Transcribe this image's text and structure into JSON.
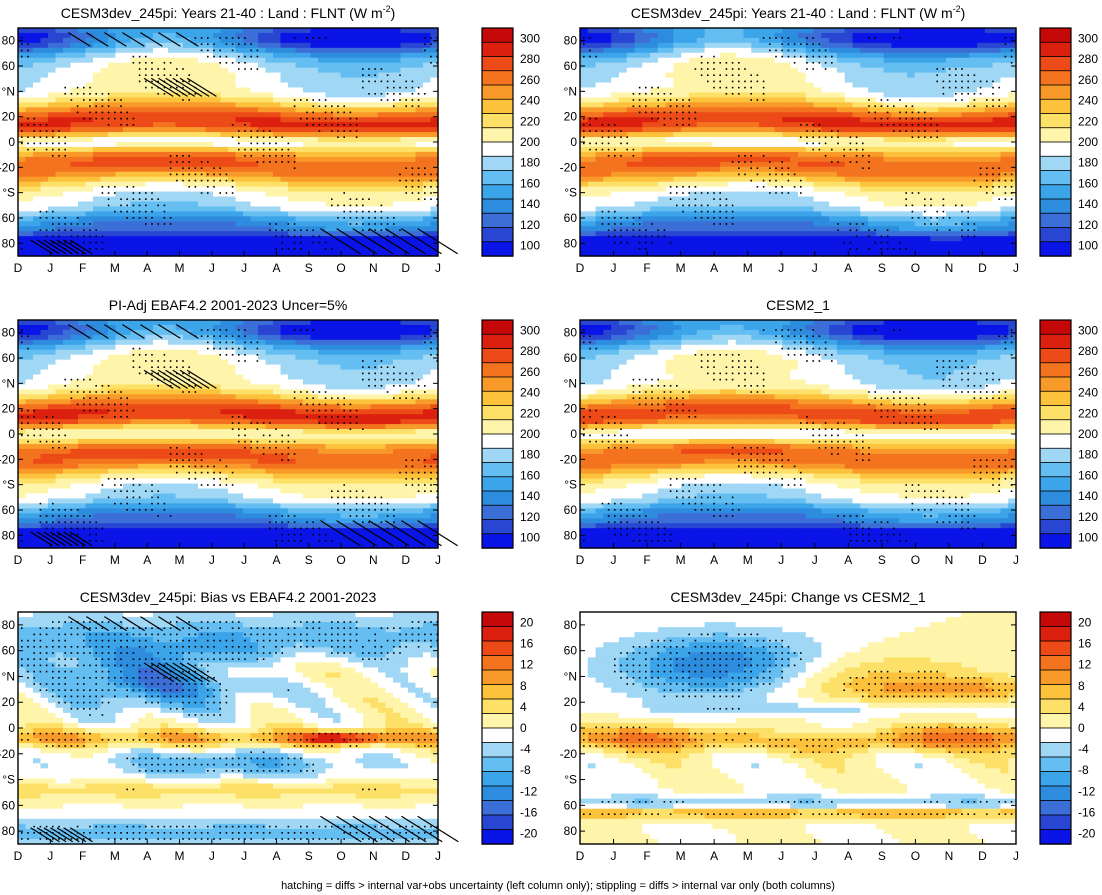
{
  "figure": {
    "footnote": "hatching = diffs > internal var+obs uncertainty (left column only); stippling = diffs > internal var only (both columns)"
  },
  "chart_data": [
    {
      "type": "heatmap",
      "title": "CESM3dev_245pi: Years 21-40 : Land : FLNT (W m",
      "title_superscript": "-2",
      "title_suffix": ")",
      "variable": "FLNT",
      "x": [
        "D",
        "J",
        "F",
        "M",
        "A",
        "M",
        "J",
        "J",
        "A",
        "S",
        "O",
        "N",
        "D",
        "J"
      ],
      "y_ticks": [
        "80",
        "60",
        "°N",
        "20",
        "0",
        "-20",
        "°S",
        "60",
        "80"
      ],
      "ylim": [
        -90,
        90
      ],
      "colorbar": [
        "300",
        "280",
        "260",
        "240",
        "220",
        "200",
        "180",
        "160",
        "140",
        "120",
        "100"
      ],
      "zlim": [
        90,
        310
      ],
      "field": "absolute",
      "overlays": [
        "stippling",
        "hatching"
      ]
    },
    {
      "type": "heatmap",
      "title": "CESM3dev_245pi: Years 21-40 : Land : FLNT (W m",
      "title_superscript": "-2",
      "title_suffix": ")",
      "variable": "FLNT",
      "x": [
        "D",
        "J",
        "F",
        "M",
        "A",
        "M",
        "J",
        "J",
        "A",
        "S",
        "O",
        "N",
        "D",
        "J"
      ],
      "y_ticks": [
        "80",
        "60",
        "°N",
        "20",
        "0",
        "-20",
        "°S",
        "60",
        "80"
      ],
      "ylim": [
        -90,
        90
      ],
      "colorbar": [
        "300",
        "280",
        "260",
        "240",
        "220",
        "200",
        "180",
        "160",
        "140",
        "120",
        "100"
      ],
      "zlim": [
        90,
        310
      ],
      "field": "absolute",
      "overlays": [
        "stippling"
      ]
    },
    {
      "type": "heatmap",
      "title": "PI-Adj EBAF4.2 2001-2023 Uncer=5%",
      "variable": "FLNT",
      "x": [
        "D",
        "J",
        "F",
        "M",
        "A",
        "M",
        "J",
        "J",
        "A",
        "S",
        "O",
        "N",
        "D",
        "J"
      ],
      "y_ticks": [
        "80",
        "60",
        "°N",
        "20",
        "0",
        "-20",
        "°S",
        "60",
        "80"
      ],
      "ylim": [
        -90,
        90
      ],
      "colorbar": [
        "300",
        "280",
        "260",
        "240",
        "220",
        "200",
        "180",
        "160",
        "140",
        "120",
        "100"
      ],
      "zlim": [
        90,
        310
      ],
      "field": "absolute",
      "overlays": [
        "stippling",
        "hatching"
      ]
    },
    {
      "type": "heatmap",
      "title": "CESM2_1",
      "variable": "FLNT",
      "x": [
        "D",
        "J",
        "F",
        "M",
        "A",
        "M",
        "J",
        "J",
        "A",
        "S",
        "O",
        "N",
        "D",
        "J"
      ],
      "y_ticks": [
        "80",
        "60",
        "°N",
        "20",
        "0",
        "-20",
        "°S",
        "60",
        "80"
      ],
      "ylim": [
        -90,
        90
      ],
      "colorbar": [
        "300",
        "280",
        "260",
        "240",
        "220",
        "200",
        "180",
        "160",
        "140",
        "120",
        "100"
      ],
      "zlim": [
        90,
        310
      ],
      "field": "absolute",
      "overlays": [
        "stippling"
      ]
    },
    {
      "type": "heatmap",
      "title": "CESM3dev_245pi: Bias vs EBAF4.2 2001-2023",
      "variable": "FLNT difference",
      "x": [
        "D",
        "J",
        "F",
        "M",
        "A",
        "M",
        "J",
        "J",
        "A",
        "S",
        "O",
        "N",
        "D",
        "J"
      ],
      "y_ticks": [
        "80",
        "60",
        "°N",
        "20",
        "0",
        "-20",
        "°S",
        "60",
        "80"
      ],
      "ylim": [
        -90,
        90
      ],
      "colorbar": [
        "20",
        "16",
        "12",
        "8",
        "4",
        "0",
        "-4",
        "-8",
        "-12",
        "-16",
        "-20"
      ],
      "zlim": [
        -22,
        22
      ],
      "field": "bias",
      "overlays": [
        "stippling",
        "hatching"
      ]
    },
    {
      "type": "heatmap",
      "title": "CESM3dev_245pi: Change vs CESM2_1",
      "variable": "FLNT difference",
      "x": [
        "D",
        "J",
        "F",
        "M",
        "A",
        "M",
        "J",
        "J",
        "A",
        "S",
        "O",
        "N",
        "D",
        "J"
      ],
      "y_ticks": [
        "80",
        "60",
        "°N",
        "20",
        "0",
        "-20",
        "°S",
        "60",
        "80"
      ],
      "ylim": [
        -90,
        90
      ],
      "colorbar": [
        "20",
        "16",
        "12",
        "8",
        "4",
        "0",
        "-4",
        "-8",
        "-12",
        "-16",
        "-20"
      ],
      "zlim": [
        -22,
        22
      ],
      "field": "change",
      "overlays": [
        "stippling"
      ]
    }
  ],
  "colors": {
    "scale": [
      "#0a14e6",
      "#2846d2",
      "#3c6ed7",
      "#2d8cde",
      "#3ca5ea",
      "#64bef2",
      "#a0d7f5",
      "#ffffff",
      "#fff5aa",
      "#fde068",
      "#fcc23c",
      "#f89a2a",
      "#f4731e",
      "#ec4a16",
      "#dc2010",
      "#c40808"
    ]
  }
}
